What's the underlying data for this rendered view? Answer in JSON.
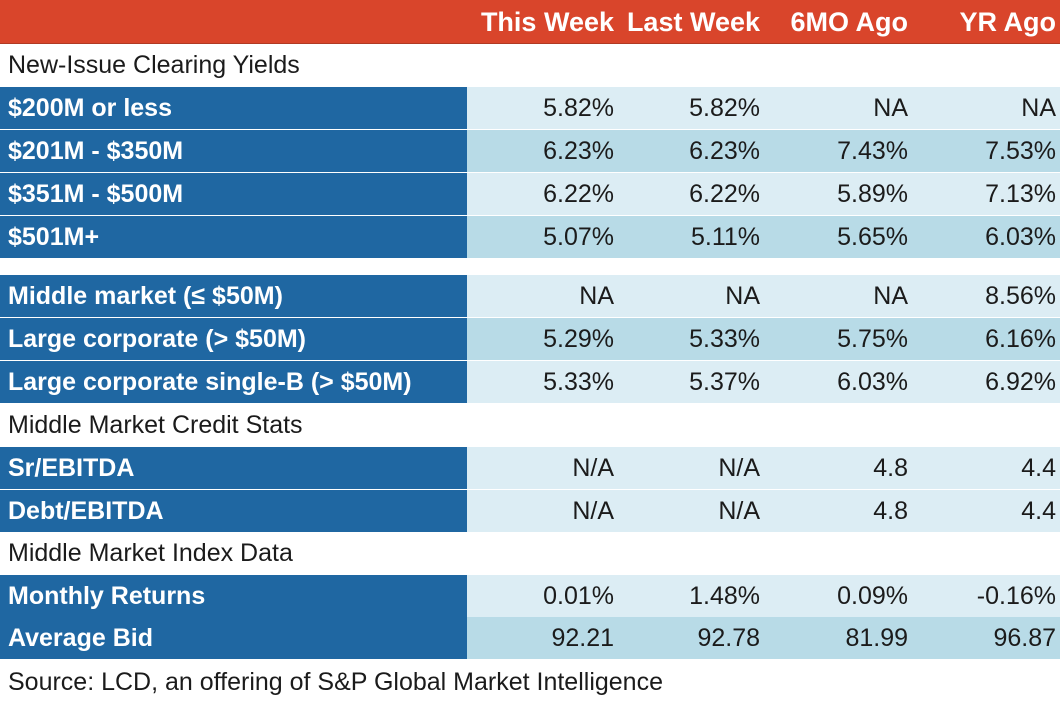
{
  "header": {
    "columns": [
      "This Week",
      "Last Week",
      "6MO Ago",
      "YR Ago"
    ]
  },
  "sections": {
    "yields": "New-Issue Clearing Yields",
    "credit_stats": "Middle Market Credit Stats",
    "index_data": "Middle Market Index Data"
  },
  "source": "Source: LCD, an offering of S&P Global Market Intelligence",
  "colors": {
    "header_bg": "#d9452b",
    "label_bg": "#1f67a2",
    "row_light": "#dcedf4",
    "row_dark": "#b8dbe7"
  },
  "chart_data": {
    "type": "table",
    "columns": [
      "This Week",
      "Last Week",
      "6MO Ago",
      "YR Ago"
    ],
    "groups": [
      {
        "title": "New-Issue Clearing Yields",
        "rows": [
          {
            "label": "$200M or less",
            "values": [
              "5.82%",
              "5.82%",
              "NA",
              "NA"
            ]
          },
          {
            "label": "$201M - $350M",
            "values": [
              "6.23%",
              "6.23%",
              "7.43%",
              "7.53%"
            ]
          },
          {
            "label": "$351M - $500M",
            "values": [
              "6.22%",
              "6.22%",
              "5.89%",
              "7.13%"
            ]
          },
          {
            "label": "$501M+",
            "values": [
              "5.07%",
              "5.11%",
              "5.65%",
              "6.03%"
            ]
          }
        ]
      },
      {
        "title": "",
        "rows": [
          {
            "label": "Middle market (≤ $50M)",
            "values": [
              "NA",
              "NA",
              "NA",
              "8.56%"
            ]
          },
          {
            "label": "Large corporate (> $50M)",
            "values": [
              "5.29%",
              "5.33%",
              "5.75%",
              "6.16%"
            ]
          },
          {
            "label": "Large corporate single-B (> $50M)",
            "values": [
              "5.33%",
              "5.37%",
              "6.03%",
              "6.92%"
            ]
          }
        ]
      },
      {
        "title": "Middle Market Credit Stats",
        "rows": [
          {
            "label": "Sr/EBITDA",
            "values": [
              "N/A",
              "N/A",
              "4.8",
              "4.4"
            ]
          },
          {
            "label": "Debt/EBITDA",
            "values": [
              "N/A",
              "N/A",
              "4.8",
              "4.4"
            ]
          }
        ]
      },
      {
        "title": "Middle Market Index Data",
        "rows": [
          {
            "label": "Monthly Returns",
            "values": [
              "0.01%",
              "1.48%",
              "0.09%",
              "-0.16%"
            ]
          },
          {
            "label": "Average Bid",
            "values": [
              "92.21",
              "92.78",
              "81.99",
              "96.87"
            ]
          }
        ]
      }
    ]
  }
}
